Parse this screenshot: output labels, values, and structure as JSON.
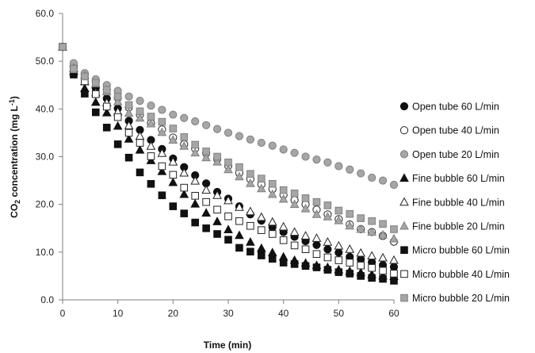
{
  "chart_data": {
    "type": "scatter",
    "title": "",
    "xlabel": "Time (min)",
    "ylabel": "CO2 concentration (mg L-1)",
    "ylabel_parts": {
      "main": "CO",
      "sub": "2",
      "mid": " concentration (mg L",
      "sup": "-1",
      "end": ")"
    },
    "xlim": [
      0,
      60
    ],
    "ylim": [
      0,
      60
    ],
    "xticks": [
      "0",
      "10",
      "20",
      "30",
      "40",
      "50",
      "60"
    ],
    "yticks": [
      "0.0",
      "10.0",
      "20.0",
      "30.0",
      "40.0",
      "50.0",
      "60.0"
    ],
    "xtick_values": [
      0,
      10,
      20,
      30,
      40,
      50,
      60
    ],
    "ytick_values": [
      0,
      10,
      20,
      30,
      40,
      50,
      60
    ],
    "grid": false,
    "legend_position": "right",
    "x": [
      0,
      2,
      4,
      6,
      8,
      10,
      12,
      14,
      16,
      18,
      20,
      22,
      24,
      26,
      28,
      30,
      32,
      34,
      36,
      38,
      40,
      42,
      44,
      46,
      48,
      50,
      52,
      54,
      56,
      58,
      60
    ],
    "series": [
      {
        "name": "Open tube 60 L/min",
        "marker": "circle",
        "fill": "#111111",
        "stroke": "#111111",
        "values": [
          53.0,
          48.8,
          46.5,
          44.4,
          42.2,
          40.1,
          37.5,
          35.6,
          33.5,
          31.6,
          29.6,
          27.8,
          26.1,
          24.4,
          22.6,
          21.2,
          19.6,
          17.9,
          16.6,
          15.2,
          14.2,
          13.2,
          12.3,
          11.5,
          10.6,
          9.9,
          9.0,
          8.5,
          7.9,
          7.3,
          6.9
        ]
      },
      {
        "name": "Open tube 40 L/min",
        "marker": "circle",
        "fill": "#ffffff",
        "stroke": "#222222",
        "values": [
          53.0,
          49.0,
          47.2,
          45.8,
          44.1,
          42.3,
          40.3,
          38.8,
          37.0,
          35.7,
          34.0,
          32.6,
          31.7,
          30.7,
          29.5,
          28.1,
          26.6,
          25.3,
          24.2,
          23.2,
          22.0,
          20.9,
          20.0,
          18.9,
          17.9,
          16.9,
          15.8,
          14.8,
          14.2,
          13.4,
          12.2
        ]
      },
      {
        "name": "Open tube 20 L/min",
        "marker": "circle",
        "fill": "#a6a6a6",
        "stroke": "#7f7f7f",
        "values": [
          53.0,
          49.6,
          47.5,
          46.2,
          45.0,
          43.8,
          42.6,
          41.7,
          40.7,
          39.8,
          38.8,
          38.1,
          37.4,
          36.6,
          35.8,
          35.0,
          34.3,
          33.6,
          32.9,
          32.3,
          31.5,
          30.8,
          30.0,
          29.4,
          28.8,
          28.0,
          27.3,
          26.5,
          25.6,
          25.0,
          24.1
        ]
      },
      {
        "name": "Fine bubble 60 L/min",
        "marker": "triangle",
        "fill": "#111111",
        "stroke": "#111111",
        "values": [
          53.0,
          47.8,
          44.3,
          41.4,
          39.2,
          36.4,
          33.7,
          31.4,
          29.2,
          26.9,
          24.6,
          22.1,
          20.1,
          18.2,
          16.4,
          14.7,
          13.5,
          12.1,
          10.8,
          9.9,
          9.0,
          8.3,
          7.7,
          7.2,
          6.8,
          6.3,
          6.0,
          5.7,
          5.3,
          5.0,
          4.9
        ]
      },
      {
        "name": "Fine bubble 40 L/min",
        "marker": "triangle",
        "fill": "#ffffff",
        "stroke": "#222222",
        "values": [
          53.0,
          48.5,
          45.7,
          43.4,
          41.3,
          39.4,
          36.5,
          34.3,
          32.2,
          30.7,
          28.9,
          26.6,
          24.9,
          23.0,
          21.9,
          20.8,
          19.4,
          18.5,
          17.3,
          16.3,
          15.3,
          14.2,
          13.4,
          12.9,
          12.1,
          11.3,
          10.6,
          9.8,
          9.2,
          8.8,
          8.3
        ]
      },
      {
        "name": "Fine bubble 20 L/min",
        "marker": "triangle",
        "fill": "#a6a6a6",
        "stroke": "#7f7f7f",
        "values": [
          53.0,
          48.4,
          47.0,
          45.3,
          43.6,
          41.5,
          39.1,
          38.1,
          36.9,
          35.1,
          33.5,
          32.2,
          30.8,
          29.8,
          28.9,
          27.3,
          25.8,
          24.4,
          23.3,
          22.1,
          21.1,
          20.0,
          19.1,
          17.9,
          17.4,
          16.6,
          15.5,
          14.8,
          14.2,
          13.6,
          12.8
        ]
      },
      {
        "name": "Micro bubble 60 L/min",
        "marker": "square",
        "fill": "#111111",
        "stroke": "#111111",
        "values": [
          53.0,
          47.2,
          43.2,
          39.3,
          36.1,
          32.6,
          29.8,
          26.7,
          24.3,
          21.9,
          19.6,
          18.1,
          16.2,
          15.0,
          13.8,
          12.6,
          10.9,
          10.1,
          9.3,
          8.6,
          7.8,
          7.5,
          7.1,
          6.8,
          6.3,
          5.8,
          5.5,
          5.0,
          4.6,
          4.4,
          4.0
        ]
      },
      {
        "name": "Micro bubble 40 L/min",
        "marker": "square",
        "fill": "#ffffff",
        "stroke": "#222222",
        "values": [
          53.0,
          48.2,
          45.8,
          43.1,
          40.5,
          38.3,
          35.0,
          32.9,
          30.1,
          28.0,
          26.2,
          23.5,
          21.8,
          20.5,
          18.9,
          17.5,
          16.5,
          15.5,
          14.6,
          13.8,
          12.5,
          11.4,
          10.6,
          9.6,
          8.9,
          8.3,
          7.8,
          7.2,
          6.7,
          6.1,
          5.5
        ]
      },
      {
        "name": "Micro bubble 20 L/min",
        "marker": "square",
        "fill": "#a6a6a6",
        "stroke": "#7f7f7f",
        "values": [
          53.0,
          48.4,
          46.8,
          45.5,
          44.0,
          42.6,
          40.8,
          39.5,
          38.4,
          37.3,
          35.9,
          34.1,
          32.5,
          31.1,
          30.0,
          28.8,
          27.8,
          26.4,
          25.4,
          24.3,
          23.0,
          22.3,
          21.3,
          20.5,
          19.8,
          18.7,
          18.0,
          17.1,
          16.5,
          15.9,
          14.8
        ]
      }
    ]
  }
}
